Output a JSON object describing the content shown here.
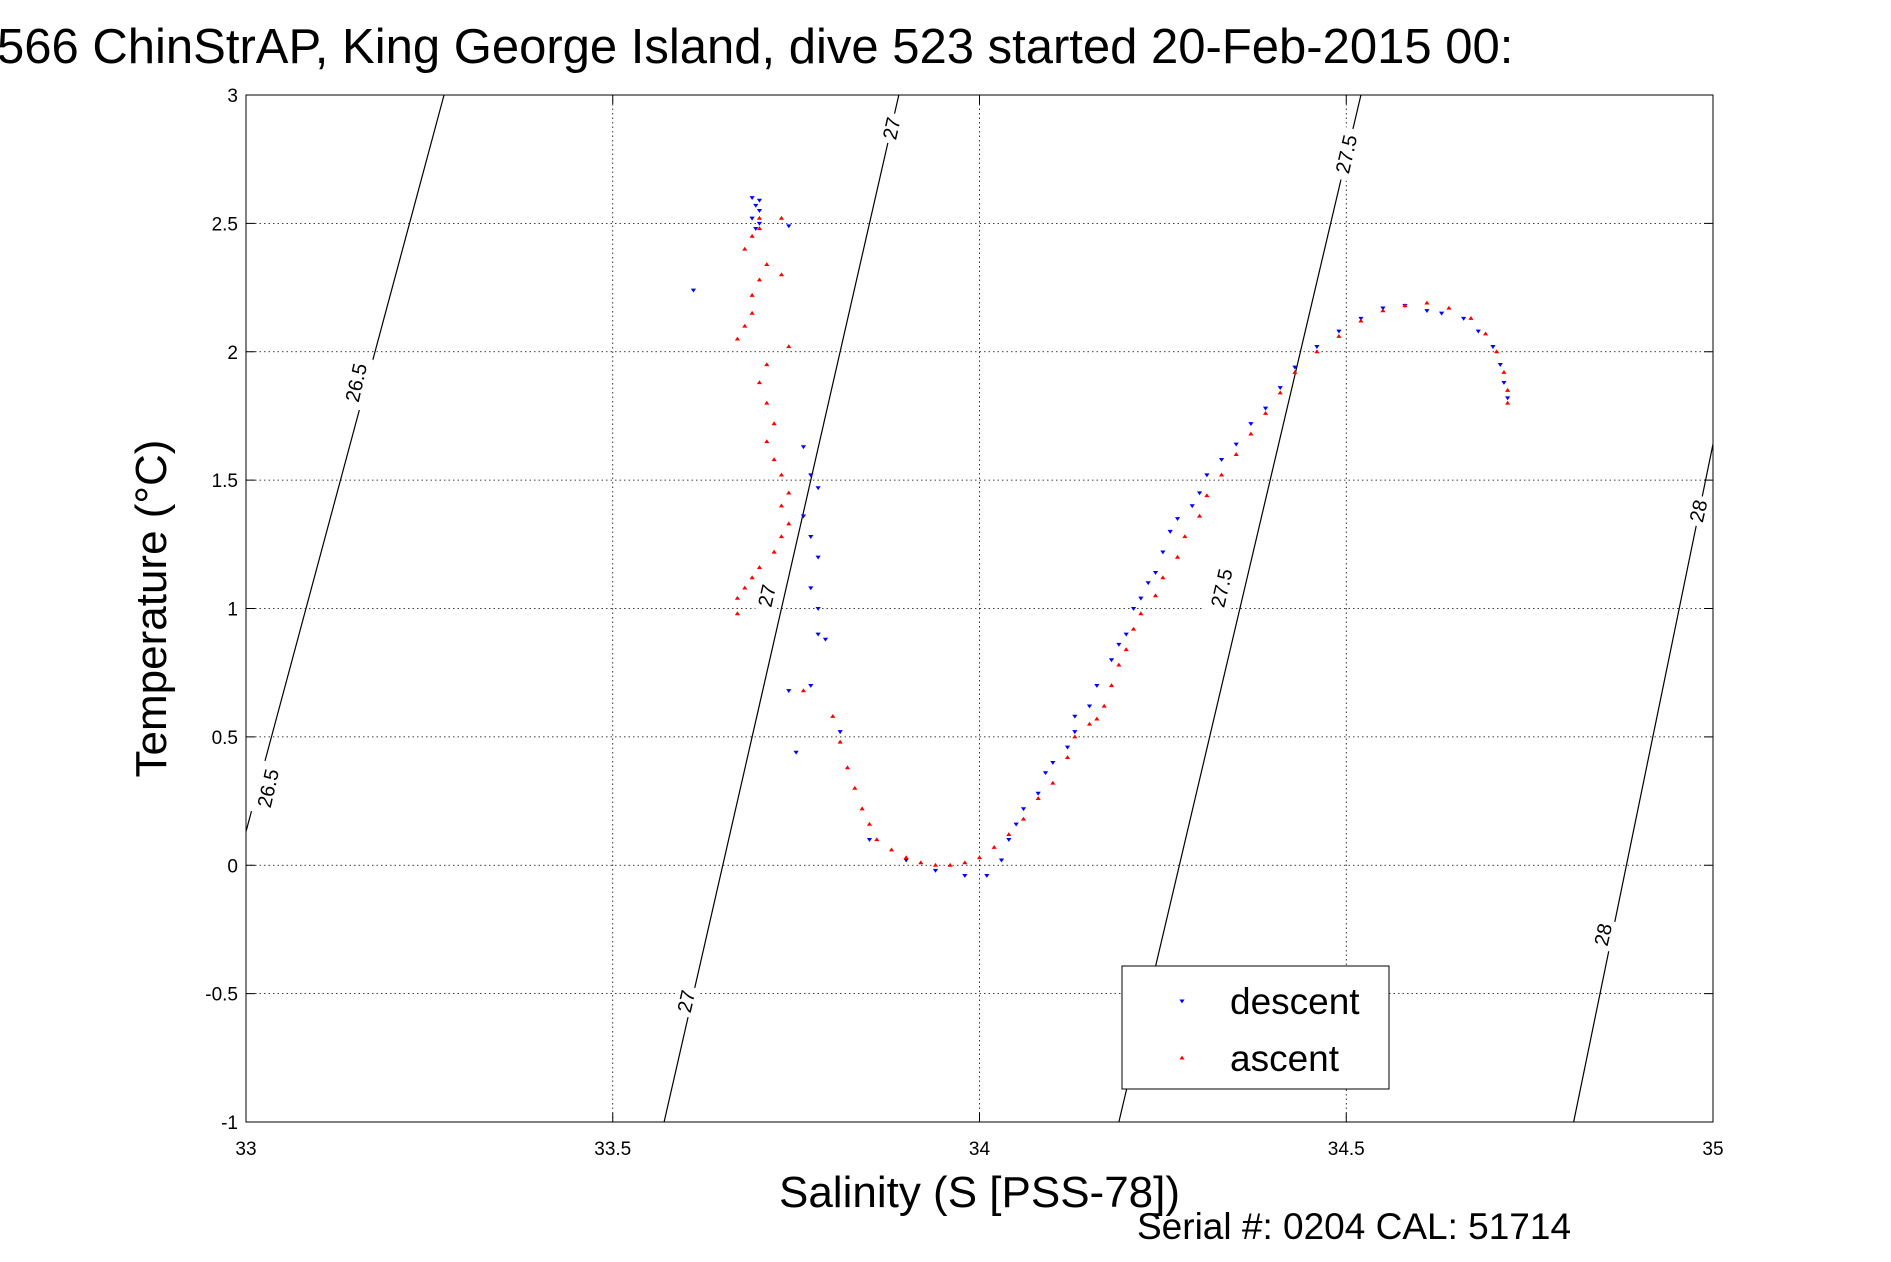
{
  "chart_data": {
    "type": "scatter",
    "title": "566 ChinStrAP, King George Island, dive 523 started 20-Feb-2015 00:",
    "xlabel": "Salinity (S [PSS-78])",
    "ylabel": "Temperature (°C)",
    "xlim": [
      33,
      35
    ],
    "ylim": [
      -1,
      3
    ],
    "x_ticks": [
      "33",
      "33.5",
      "34",
      "34.5",
      "35"
    ],
    "y_ticks": [
      "3",
      "2.5",
      "2",
      "1.5",
      "1",
      "0.5",
      "0",
      "-0.5",
      "-1"
    ],
    "grid": true,
    "legend_position": "bottom-right",
    "footer": "Serial #: 0204  CAL: 51714",
    "isopycnals": [
      {
        "label": "26.5",
        "x": [
          32.95,
          33.27
        ],
        "y": [
          -0.4,
          3.0
        ]
      },
      {
        "label": "27",
        "x": [
          33.57,
          33.89
        ],
        "y": [
          -1.0,
          3.0
        ]
      },
      {
        "label": "27.5",
        "x": [
          34.19,
          34.52
        ],
        "y": [
          -1.0,
          3.0
        ]
      },
      {
        "label": "28",
        "x": [
          34.81,
          35.0
        ],
        "y": [
          -1.0,
          1.64
        ]
      }
    ],
    "isopycnal_labels": [
      {
        "text": "26.5",
        "x": 33.15,
        "y": 1.88
      },
      {
        "text": "26.5",
        "x": 33.03,
        "y": 0.3
      },
      {
        "text": "27",
        "x": 33.71,
        "y": 1.05
      },
      {
        "text": "27",
        "x": 33.6,
        "y": -0.53
      },
      {
        "text": "27",
        "x": 33.88,
        "y": 2.87
      },
      {
        "text": "27.5",
        "x": 34.33,
        "y": 1.08
      },
      {
        "text": "27.5",
        "x": 34.5,
        "y": 2.77
      },
      {
        "text": "28",
        "x": 34.85,
        "y": -0.27
      },
      {
        "text": "28",
        "x": 34.98,
        "y": 1.38
      }
    ],
    "series": [
      {
        "name": "descent",
        "color": "#0000ff",
        "marker": "triangle-down",
        "points": [
          [
            33.69,
            2.6
          ],
          [
            33.7,
            2.59
          ],
          [
            33.695,
            2.57
          ],
          [
            33.7,
            2.55
          ],
          [
            33.69,
            2.52
          ],
          [
            33.7,
            2.5
          ],
          [
            33.695,
            2.48
          ],
          [
            33.74,
            2.49
          ],
          [
            33.61,
            2.24
          ],
          [
            33.76,
            1.63
          ],
          [
            33.77,
            1.52
          ],
          [
            33.78,
            1.47
          ],
          [
            33.76,
            1.36
          ],
          [
            33.77,
            1.28
          ],
          [
            33.78,
            1.2
          ],
          [
            33.77,
            1.08
          ],
          [
            33.78,
            1.0
          ],
          [
            33.78,
            0.9
          ],
          [
            33.79,
            0.88
          ],
          [
            33.74,
            0.68
          ],
          [
            33.77,
            0.7
          ],
          [
            33.81,
            0.52
          ],
          [
            33.75,
            0.44
          ],
          [
            33.85,
            0.1
          ],
          [
            33.9,
            0.02
          ],
          [
            33.94,
            -0.02
          ],
          [
            33.98,
            -0.04
          ],
          [
            34.01,
            -0.04
          ],
          [
            34.03,
            0.02
          ],
          [
            34.04,
            0.1
          ],
          [
            34.05,
            0.16
          ],
          [
            34.06,
            0.22
          ],
          [
            34.08,
            0.28
          ],
          [
            34.09,
            0.36
          ],
          [
            34.1,
            0.4
          ],
          [
            34.12,
            0.46
          ],
          [
            34.13,
            0.52
          ],
          [
            34.13,
            0.58
          ],
          [
            34.15,
            0.62
          ],
          [
            34.16,
            0.7
          ],
          [
            34.18,
            0.8
          ],
          [
            34.19,
            0.86
          ],
          [
            34.2,
            0.9
          ],
          [
            34.21,
            1.0
          ],
          [
            34.22,
            1.04
          ],
          [
            34.23,
            1.1
          ],
          [
            34.24,
            1.14
          ],
          [
            34.25,
            1.22
          ],
          [
            34.26,
            1.3
          ],
          [
            34.27,
            1.35
          ],
          [
            34.29,
            1.4
          ],
          [
            34.3,
            1.45
          ],
          [
            34.31,
            1.52
          ],
          [
            34.33,
            1.58
          ],
          [
            34.35,
            1.64
          ],
          [
            34.37,
            1.72
          ],
          [
            34.39,
            1.78
          ],
          [
            34.41,
            1.86
          ],
          [
            34.43,
            1.94
          ],
          [
            34.46,
            2.02
          ],
          [
            34.49,
            2.08
          ],
          [
            34.52,
            2.13
          ],
          [
            34.55,
            2.17
          ],
          [
            34.58,
            2.18
          ],
          [
            34.61,
            2.16
          ],
          [
            34.63,
            2.15
          ],
          [
            34.66,
            2.13
          ],
          [
            34.68,
            2.08
          ],
          [
            34.7,
            2.02
          ],
          [
            34.71,
            1.95
          ],
          [
            34.715,
            1.88
          ],
          [
            34.72,
            1.82
          ]
        ]
      },
      {
        "name": "ascent",
        "color": "#ff0000",
        "marker": "triangle-up",
        "points": [
          [
            33.7,
            2.52
          ],
          [
            33.7,
            2.48
          ],
          [
            33.69,
            2.45
          ],
          [
            33.73,
            2.52
          ],
          [
            33.68,
            2.4
          ],
          [
            33.71,
            2.34
          ],
          [
            33.7,
            2.28
          ],
          [
            33.69,
            2.22
          ],
          [
            33.69,
            2.15
          ],
          [
            33.68,
            2.1
          ],
          [
            33.67,
            2.05
          ],
          [
            33.73,
            2.3
          ],
          [
            33.74,
            2.02
          ],
          [
            33.71,
            1.95
          ],
          [
            33.7,
            1.88
          ],
          [
            33.71,
            1.8
          ],
          [
            33.72,
            1.72
          ],
          [
            33.71,
            1.65
          ],
          [
            33.72,
            1.58
          ],
          [
            33.73,
            1.52
          ],
          [
            33.74,
            1.45
          ],
          [
            33.73,
            1.4
          ],
          [
            33.74,
            1.33
          ],
          [
            33.73,
            1.28
          ],
          [
            33.72,
            1.22
          ],
          [
            33.7,
            1.16
          ],
          [
            33.69,
            1.12
          ],
          [
            33.68,
            1.08
          ],
          [
            33.67,
            1.04
          ],
          [
            33.67,
            0.98
          ],
          [
            33.76,
            0.68
          ],
          [
            33.8,
            0.58
          ],
          [
            33.81,
            0.48
          ],
          [
            33.82,
            0.38
          ],
          [
            33.83,
            0.3
          ],
          [
            33.84,
            0.22
          ],
          [
            33.85,
            0.16
          ],
          [
            33.86,
            0.1
          ],
          [
            33.88,
            0.06
          ],
          [
            33.9,
            0.03
          ],
          [
            33.92,
            0.01
          ],
          [
            33.94,
            0.0
          ],
          [
            33.96,
            0.0
          ],
          [
            33.98,
            0.01
          ],
          [
            34.0,
            0.03
          ],
          [
            34.02,
            0.07
          ],
          [
            34.04,
            0.12
          ],
          [
            34.06,
            0.18
          ],
          [
            34.08,
            0.26
          ],
          [
            34.1,
            0.32
          ],
          [
            34.12,
            0.42
          ],
          [
            34.13,
            0.5
          ],
          [
            34.15,
            0.55
          ],
          [
            34.16,
            0.57
          ],
          [
            34.17,
            0.62
          ],
          [
            34.18,
            0.7
          ],
          [
            34.19,
            0.78
          ],
          [
            34.2,
            0.84
          ],
          [
            34.21,
            0.92
          ],
          [
            34.22,
            0.98
          ],
          [
            34.24,
            1.05
          ],
          [
            34.25,
            1.12
          ],
          [
            34.27,
            1.2
          ],
          [
            34.28,
            1.28
          ],
          [
            34.3,
            1.36
          ],
          [
            34.31,
            1.44
          ],
          [
            34.33,
            1.52
          ],
          [
            34.35,
            1.6
          ],
          [
            34.37,
            1.68
          ],
          [
            34.39,
            1.76
          ],
          [
            34.41,
            1.84
          ],
          [
            34.43,
            1.92
          ],
          [
            34.46,
            2.0
          ],
          [
            34.49,
            2.06
          ],
          [
            34.52,
            2.12
          ],
          [
            34.55,
            2.16
          ],
          [
            34.58,
            2.18
          ],
          [
            34.61,
            2.19
          ],
          [
            34.64,
            2.17
          ],
          [
            34.67,
            2.13
          ],
          [
            34.69,
            2.07
          ],
          [
            34.705,
            2.0
          ],
          [
            34.715,
            1.92
          ],
          [
            34.72,
            1.85
          ],
          [
            34.72,
            1.8
          ]
        ]
      }
    ]
  }
}
